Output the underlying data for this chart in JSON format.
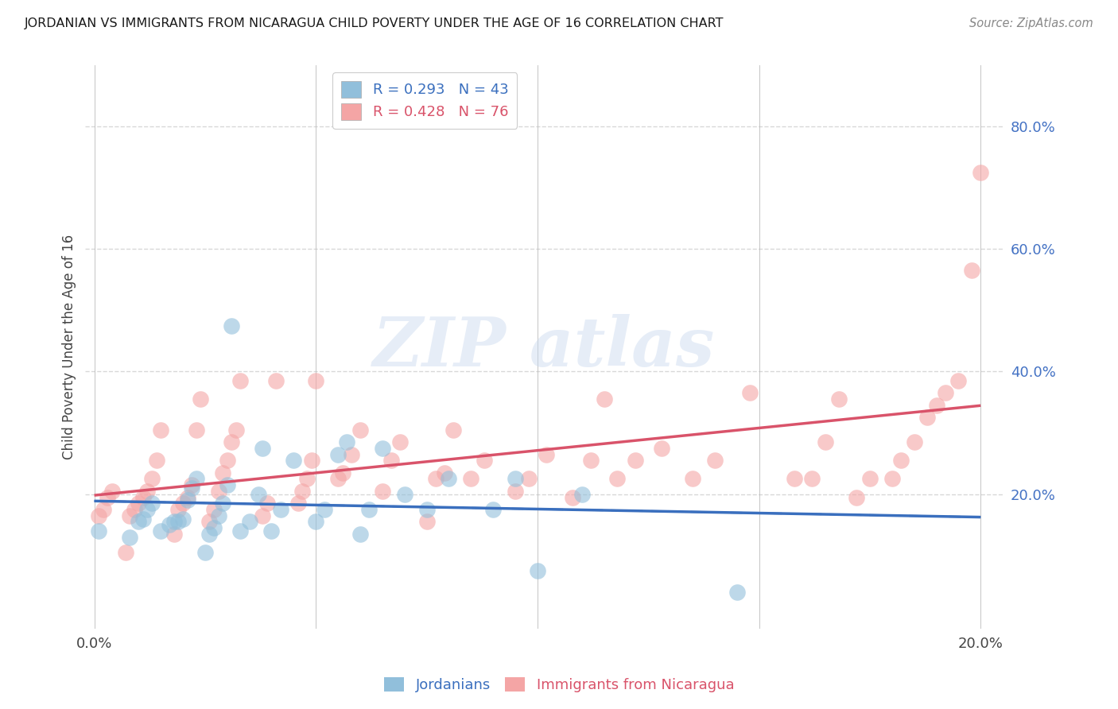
{
  "title": "JORDANIAN VS IMMIGRANTS FROM NICARAGUA CHILD POVERTY UNDER THE AGE OF 16 CORRELATION CHART",
  "source": "Source: ZipAtlas.com",
  "ylabel": "Child Poverty Under the Age of 16",
  "xlim": [
    -0.002,
    0.205
  ],
  "ylim": [
    -0.02,
    0.9
  ],
  "xticks": [
    0.0,
    0.05,
    0.1,
    0.15,
    0.2
  ],
  "yticks": [
    0.0,
    0.2,
    0.4,
    0.6,
    0.8
  ],
  "ytick_labels": [
    "",
    "20.0%",
    "40.0%",
    "60.0%",
    "80.0%"
  ],
  "xtick_labels": [
    "0.0%",
    "",
    "",
    "",
    "20.0%"
  ],
  "background_color": "#ffffff",
  "grid_color": "#d8d8d8",
  "jordanians_color": "#91bfdb",
  "nicaragua_color": "#f4a5a5",
  "jordanians_label": "Jordanians",
  "nicaragua_label": "Immigrants from Nicaragua",
  "R_jordanians": 0.293,
  "N_jordanians": 43,
  "R_nicaragua": 0.428,
  "N_nicaragua": 76,
  "line_blue": "#3a6fbe",
  "line_pink": "#d9536a",
  "jordanians_x": [
    0.001,
    0.008,
    0.01,
    0.011,
    0.012,
    0.013,
    0.015,
    0.017,
    0.018,
    0.019,
    0.02,
    0.021,
    0.022,
    0.023,
    0.025,
    0.026,
    0.027,
    0.028,
    0.029,
    0.03,
    0.031,
    0.033,
    0.035,
    0.037,
    0.038,
    0.04,
    0.042,
    0.045,
    0.05,
    0.052,
    0.055,
    0.057,
    0.06,
    0.062,
    0.065,
    0.07,
    0.075,
    0.08,
    0.09,
    0.095,
    0.1,
    0.11,
    0.145
  ],
  "jordanians_y": [
    0.14,
    0.13,
    0.155,
    0.16,
    0.175,
    0.185,
    0.14,
    0.15,
    0.155,
    0.155,
    0.16,
    0.19,
    0.21,
    0.225,
    0.105,
    0.135,
    0.145,
    0.165,
    0.185,
    0.215,
    0.475,
    0.14,
    0.155,
    0.2,
    0.275,
    0.14,
    0.175,
    0.255,
    0.155,
    0.175,
    0.265,
    0.285,
    0.135,
    0.175,
    0.275,
    0.2,
    0.175,
    0.225,
    0.175,
    0.225,
    0.075,
    0.2,
    0.04
  ],
  "nicaragua_x": [
    0.001,
    0.002,
    0.003,
    0.004,
    0.007,
    0.008,
    0.009,
    0.01,
    0.011,
    0.012,
    0.013,
    0.014,
    0.015,
    0.018,
    0.019,
    0.02,
    0.021,
    0.022,
    0.023,
    0.024,
    0.026,
    0.027,
    0.028,
    0.029,
    0.03,
    0.031,
    0.032,
    0.033,
    0.038,
    0.039,
    0.041,
    0.046,
    0.047,
    0.048,
    0.049,
    0.05,
    0.055,
    0.056,
    0.058,
    0.06,
    0.065,
    0.067,
    0.069,
    0.075,
    0.077,
    0.079,
    0.081,
    0.085,
    0.088,
    0.095,
    0.098,
    0.102,
    0.108,
    0.112,
    0.115,
    0.118,
    0.122,
    0.128,
    0.135,
    0.14,
    0.148,
    0.158,
    0.162,
    0.165,
    0.168,
    0.172,
    0.175,
    0.18,
    0.182,
    0.185,
    0.188,
    0.19,
    0.192,
    0.195,
    0.198,
    0.2
  ],
  "nicaragua_y": [
    0.165,
    0.175,
    0.195,
    0.205,
    0.105,
    0.165,
    0.175,
    0.185,
    0.195,
    0.205,
    0.225,
    0.255,
    0.305,
    0.135,
    0.175,
    0.185,
    0.195,
    0.215,
    0.305,
    0.355,
    0.155,
    0.175,
    0.205,
    0.235,
    0.255,
    0.285,
    0.305,
    0.385,
    0.165,
    0.185,
    0.385,
    0.185,
    0.205,
    0.225,
    0.255,
    0.385,
    0.225,
    0.235,
    0.265,
    0.305,
    0.205,
    0.255,
    0.285,
    0.155,
    0.225,
    0.235,
    0.305,
    0.225,
    0.255,
    0.205,
    0.225,
    0.265,
    0.195,
    0.255,
    0.355,
    0.225,
    0.255,
    0.275,
    0.225,
    0.255,
    0.365,
    0.225,
    0.225,
    0.285,
    0.355,
    0.195,
    0.225,
    0.225,
    0.255,
    0.285,
    0.325,
    0.345,
    0.365,
    0.385,
    0.565,
    0.725
  ]
}
